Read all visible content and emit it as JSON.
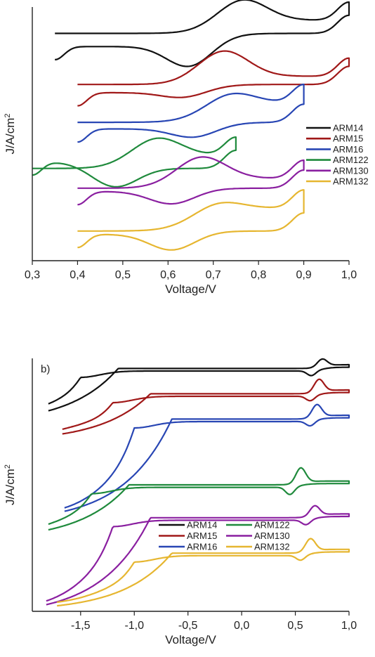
{
  "chart_data": [
    {
      "type": "line",
      "panel_label": "",
      "xlabel": "Voltage/V",
      "ylabel": "J/A/cm",
      "ylabel_superscript": "2",
      "xlim": [
        0.3,
        1.0
      ],
      "xticks": [
        "0,3",
        "0,4",
        "0,5",
        "0,6",
        "0,7",
        "0,8",
        "0,9",
        "1,0"
      ],
      "xtick_values": [
        0.3,
        0.4,
        0.5,
        0.6,
        0.7,
        0.8,
        0.9,
        1.0
      ],
      "y_tick_labels": false,
      "ylim": [
        -7.2,
        0.5
      ],
      "grid": false,
      "legend": {
        "placement": "right",
        "columns": 1
      },
      "series": [
        {
          "name": "ARM14",
          "color": "#111111",
          "x_start": 0.35,
          "x_end": 1.0,
          "baseline": 0,
          "peak_ox": [
            0.76,
            0.6
          ],
          "peak_red": [
            0.65,
            -1.2
          ],
          "tail_ox": 0.1,
          "tail_red": -0.7,
          "mid": -0.3
        },
        {
          "name": "ARM15",
          "color": "#a01818",
          "x_start": 0.4,
          "x_end": 1.0,
          "baseline": -1.5,
          "peak_ox": [
            0.72,
            0.5
          ],
          "peak_red": [
            0.64,
            -0.6
          ],
          "tail_ox": -0.1,
          "tail_red": -0.6,
          "mid": -0.35
        },
        {
          "name": "ARM16",
          "color": "#2846b4",
          "x_start": 0.4,
          "x_end": 0.9,
          "baseline": -2.8,
          "peak_ox": [
            0.73,
            0.6
          ],
          "peak_red": [
            0.66,
            -0.5
          ],
          "tail_ox": 0.4,
          "tail_red": -0.4,
          "mid": -0.2
        },
        {
          "name": "ARM122",
          "color": "#1f8a3c",
          "x_start": 0.3,
          "x_end": 0.75,
          "baseline": -4.2,
          "peak_ox": [
            0.57,
            0.6
          ],
          "peak_red": [
            0.48,
            -0.5
          ],
          "tail_ox": 0.2,
          "tail_red": 0.0,
          "mid": -0.2
        },
        {
          "name": "ARM130",
          "color": "#8a1fa0",
          "x_start": 0.4,
          "x_end": 0.9,
          "baseline": -4.8,
          "peak_ox": [
            0.67,
            0.6
          ],
          "peak_red": [
            0.61,
            -0.5
          ],
          "tail_ox": 0.1,
          "tail_red": -0.3,
          "mid": -0.2
        },
        {
          "name": "ARM132",
          "color": "#e6b630",
          "x_start": 0.4,
          "x_end": 0.9,
          "baseline": -6.2,
          "peak_ox": [
            0.7,
            0.7
          ],
          "peak_red": [
            0.61,
            -0.5
          ],
          "tail_ox": 0.6,
          "tail_red": -0.2,
          "mid": -0.1
        }
      ]
    },
    {
      "type": "line",
      "panel_label": "b)",
      "xlabel": "Voltage/V",
      "ylabel": "J/A/cm",
      "ylabel_superscript": "2",
      "xlim": [
        -1.95,
        1.0
      ],
      "xticks": [
        "-1,5",
        "-1,0",
        "-0,5",
        "0,0",
        "0,5",
        "1,0"
      ],
      "xtick_values": [
        -1.5,
        -1.0,
        -0.5,
        0.0,
        0.5,
        1.0
      ],
      "y_tick_labels": false,
      "ylim": [
        -9.5,
        0.5
      ],
      "grid": false,
      "legend": {
        "placement": "bottom-center",
        "columns": 2
      },
      "series": [
        {
          "name": "ARM14",
          "color": "#111111",
          "x_start": -1.8,
          "x_end": 1.0,
          "baseline": 0,
          "drop": 1.9,
          "knee": -1.5,
          "peak_ox": [
            0.75,
            0.3
          ],
          "peak_red": [
            0.65,
            -0.2
          ]
        },
        {
          "name": "ARM15",
          "color": "#a01818",
          "x_start": -1.67,
          "x_end": 1.0,
          "baseline": -1.0,
          "drop": 1.6,
          "knee": -1.2,
          "peak_ox": [
            0.72,
            0.5
          ],
          "peak_red": [
            0.64,
            -0.2
          ]
        },
        {
          "name": "ARM16",
          "color": "#2846b4",
          "x_start": -1.65,
          "x_end": 1.0,
          "baseline": -2.0,
          "drop": 3.8,
          "knee": -1.0,
          "peak_ox": [
            0.7,
            0.5
          ],
          "peak_red": [
            0.64,
            -0.2
          ]
        },
        {
          "name": "ARM122",
          "color": "#1f8a3c",
          "x_start": -1.8,
          "x_end": 1.0,
          "baseline": -4.6,
          "drop": 1.9,
          "knee": -1.4,
          "peak_ox": [
            0.55,
            0.6
          ],
          "peak_red": [
            0.45,
            -0.3
          ]
        },
        {
          "name": "ARM130",
          "color": "#8a1fa0",
          "x_start": -1.82,
          "x_end": 1.0,
          "baseline": -5.9,
          "drop": 3.6,
          "knee": -1.2,
          "peak_ox": [
            0.68,
            0.4
          ],
          "peak_red": [
            0.6,
            -0.2
          ]
        },
        {
          "name": "ARM132",
          "color": "#e6b630",
          "x_start": -1.72,
          "x_end": 1.0,
          "baseline": -7.3,
          "drop": 2.0,
          "knee": -1.0,
          "peak_ox": [
            0.64,
            0.5
          ],
          "peak_red": [
            0.55,
            -0.2
          ]
        }
      ]
    }
  ]
}
